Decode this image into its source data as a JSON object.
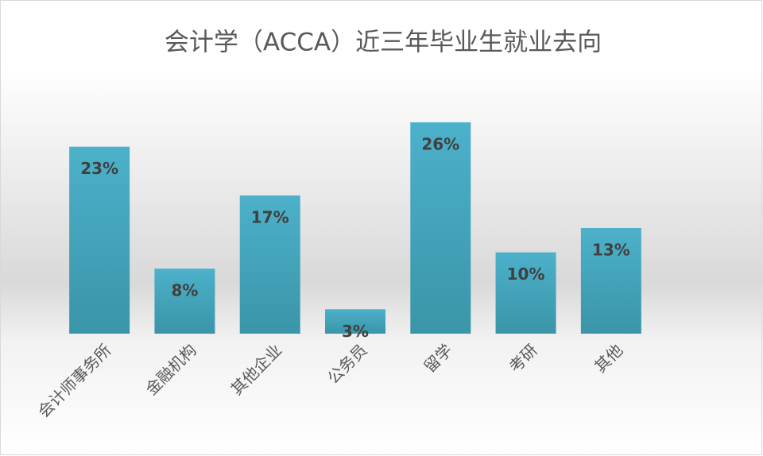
{
  "chart_data": {
    "type": "bar",
    "title": "会计学（ACCA）近三年毕业生就业去向",
    "categories": [
      "会计师事务所",
      "金融机构",
      "其他企业",
      "公务员",
      "留学",
      "考研",
      "其他"
    ],
    "values": [
      23,
      8,
      17,
      3,
      26,
      10,
      13
    ],
    "value_labels": [
      "23%",
      "8%",
      "17%",
      "3%",
      "26%",
      "10%",
      "13%"
    ],
    "color": "#45a9c2"
  }
}
